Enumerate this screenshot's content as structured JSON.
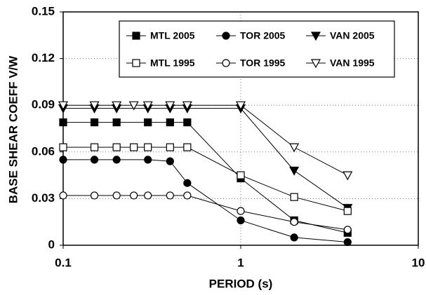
{
  "chart_data": {
    "type": "line",
    "xlabel": "PERIOD (s)",
    "ylabel": "BASE SHEAR COEFF V/W",
    "xlog": true,
    "xlim": [
      0.1,
      10
    ],
    "xticks": [
      0.1,
      1,
      10
    ],
    "ylim": [
      0,
      0.15
    ],
    "yticks": [
      0,
      0.03,
      0.06,
      0.09,
      0.12,
      0.15
    ],
    "grid": true,
    "legend": "upper right",
    "series": [
      {
        "name": "MTL 2005",
        "color": "#000000",
        "marker": "square",
        "filled": true,
        "x": [
          0.1,
          0.15,
          0.2,
          0.3,
          0.4,
          0.5,
          1,
          2,
          4
        ],
        "values": [
          0.079,
          0.079,
          0.079,
          0.079,
          0.079,
          0.079,
          0.043,
          0.016,
          0.008
        ]
      },
      {
        "name": "TOR 2005",
        "color": "#000000",
        "marker": "circle",
        "filled": true,
        "x": [
          0.1,
          0.15,
          0.2,
          0.3,
          0.4,
          0.5,
          1,
          2,
          4
        ],
        "values": [
          0.055,
          0.055,
          0.055,
          0.055,
          0.054,
          0.04,
          0.016,
          0.005,
          0.002
        ]
      },
      {
        "name": "VAN 2005",
        "color": "#000000",
        "marker": "triangle",
        "filled": true,
        "x": [
          0.1,
          0.15,
          0.2,
          0.3,
          0.4,
          0.5,
          1,
          2,
          4
        ],
        "values": [
          0.088,
          0.088,
          0.088,
          0.088,
          0.088,
          0.088,
          0.088,
          0.048,
          0.024
        ]
      },
      {
        "name": "MTL 1995",
        "color": "#000000",
        "marker": "square",
        "filled": false,
        "x": [
          0.1,
          0.15,
          0.2,
          0.25,
          0.3,
          0.4,
          0.5,
          1,
          2,
          4
        ],
        "values": [
          0.063,
          0.063,
          0.063,
          0.063,
          0.063,
          0.063,
          0.063,
          0.045,
          0.031,
          0.022
        ]
      },
      {
        "name": "TOR 1995",
        "color": "#000000",
        "marker": "circle",
        "filled": false,
        "x": [
          0.1,
          0.15,
          0.2,
          0.25,
          0.3,
          0.4,
          0.5,
          1,
          2,
          4
        ],
        "values": [
          0.032,
          0.032,
          0.032,
          0.032,
          0.032,
          0.032,
          0.032,
          0.022,
          0.015,
          0.01
        ]
      },
      {
        "name": "VAN 1995",
        "color": "#000000",
        "marker": "triangle",
        "filled": false,
        "x": [
          0.1,
          0.15,
          0.2,
          0.25,
          0.3,
          0.4,
          0.5,
          1,
          2,
          4
        ],
        "values": [
          0.09,
          0.09,
          0.09,
          0.09,
          0.09,
          0.09,
          0.09,
          0.09,
          0.063,
          0.045
        ]
      }
    ]
  }
}
